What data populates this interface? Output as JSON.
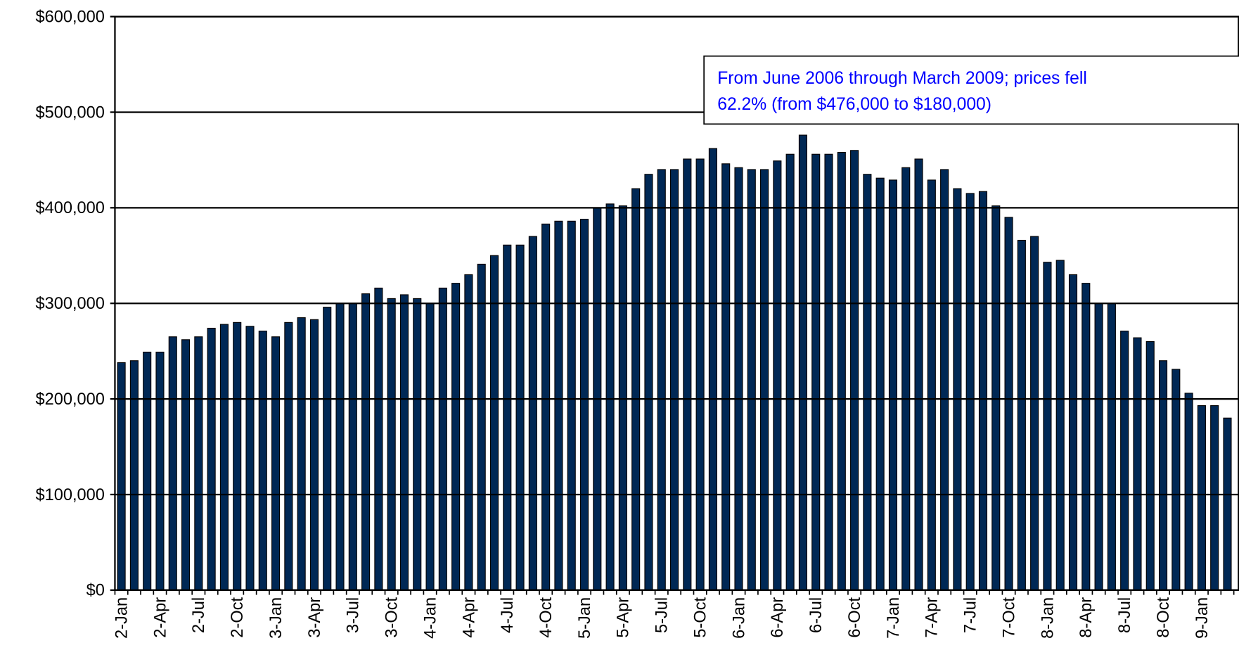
{
  "chart_data": {
    "type": "bar",
    "annotation": [
      "From June 2006 through March 2009; prices fell",
      "62.2% (from $476,000 to $180,000)"
    ],
    "categories": [
      "2-Jan",
      null,
      null,
      "2-Apr",
      null,
      null,
      "2-Jul",
      null,
      null,
      "2-Oct",
      null,
      null,
      "3-Jan",
      null,
      null,
      "3-Apr",
      null,
      null,
      "3-Jul",
      null,
      null,
      "3-Oct",
      null,
      null,
      "4-Jan",
      null,
      null,
      "4-Apr",
      null,
      null,
      "4-Jul",
      null,
      null,
      "4-Oct",
      null,
      null,
      "5-Jan",
      null,
      null,
      "5-Apr",
      null,
      null,
      "5-Jul",
      null,
      null,
      "5-Oct",
      null,
      null,
      "6-Jan",
      null,
      null,
      "6-Apr",
      null,
      null,
      "6-Jul",
      null,
      null,
      "6-Oct",
      null,
      null,
      "7-Jan",
      null,
      null,
      "7-Apr",
      null,
      null,
      "7-Jul",
      null,
      null,
      "7-Oct",
      null,
      null,
      "8-Jan",
      null,
      null,
      "8-Apr",
      null,
      null,
      "8-Jul",
      null,
      null,
      "8-Oct",
      null,
      null,
      "9-Jan",
      null,
      null
    ],
    "values": [
      238000,
      240000,
      249000,
      249000,
      265000,
      262000,
      265000,
      274000,
      278000,
      280000,
      276000,
      271000,
      265000,
      280000,
      285000,
      283000,
      296000,
      300000,
      300000,
      310000,
      316000,
      305000,
      309000,
      305000,
      300000,
      316000,
      321000,
      330000,
      341000,
      350000,
      361000,
      361000,
      370000,
      383000,
      386000,
      386000,
      388000,
      400000,
      404000,
      402000,
      420000,
      435000,
      440000,
      440000,
      451000,
      451000,
      462000,
      446000,
      442000,
      440000,
      440000,
      449000,
      456000,
      476000,
      456000,
      456000,
      458000,
      460000,
      435000,
      431000,
      429000,
      442000,
      451000,
      429000,
      440000,
      420000,
      415000,
      417000,
      402000,
      390000,
      366000,
      370000,
      343000,
      345000,
      330000,
      321000,
      300000,
      300000,
      271000,
      264000,
      260000,
      240000,
      231000,
      206000,
      193000,
      193000,
      180000
    ],
    "color": "#002855",
    "ylim": [
      0,
      600000
    ],
    "yticks": [
      {
        "value": 0,
        "label": "$0"
      },
      {
        "value": 100000,
        "label": "$100,000"
      },
      {
        "value": 200000,
        "label": "$200,000"
      },
      {
        "value": 300000,
        "label": "$300,000"
      },
      {
        "value": 400000,
        "label": "$400,000"
      },
      {
        "value": 500000,
        "label": "$500,000"
      },
      {
        "value": 600000,
        "label": "$600,000"
      }
    ],
    "grid": true
  }
}
